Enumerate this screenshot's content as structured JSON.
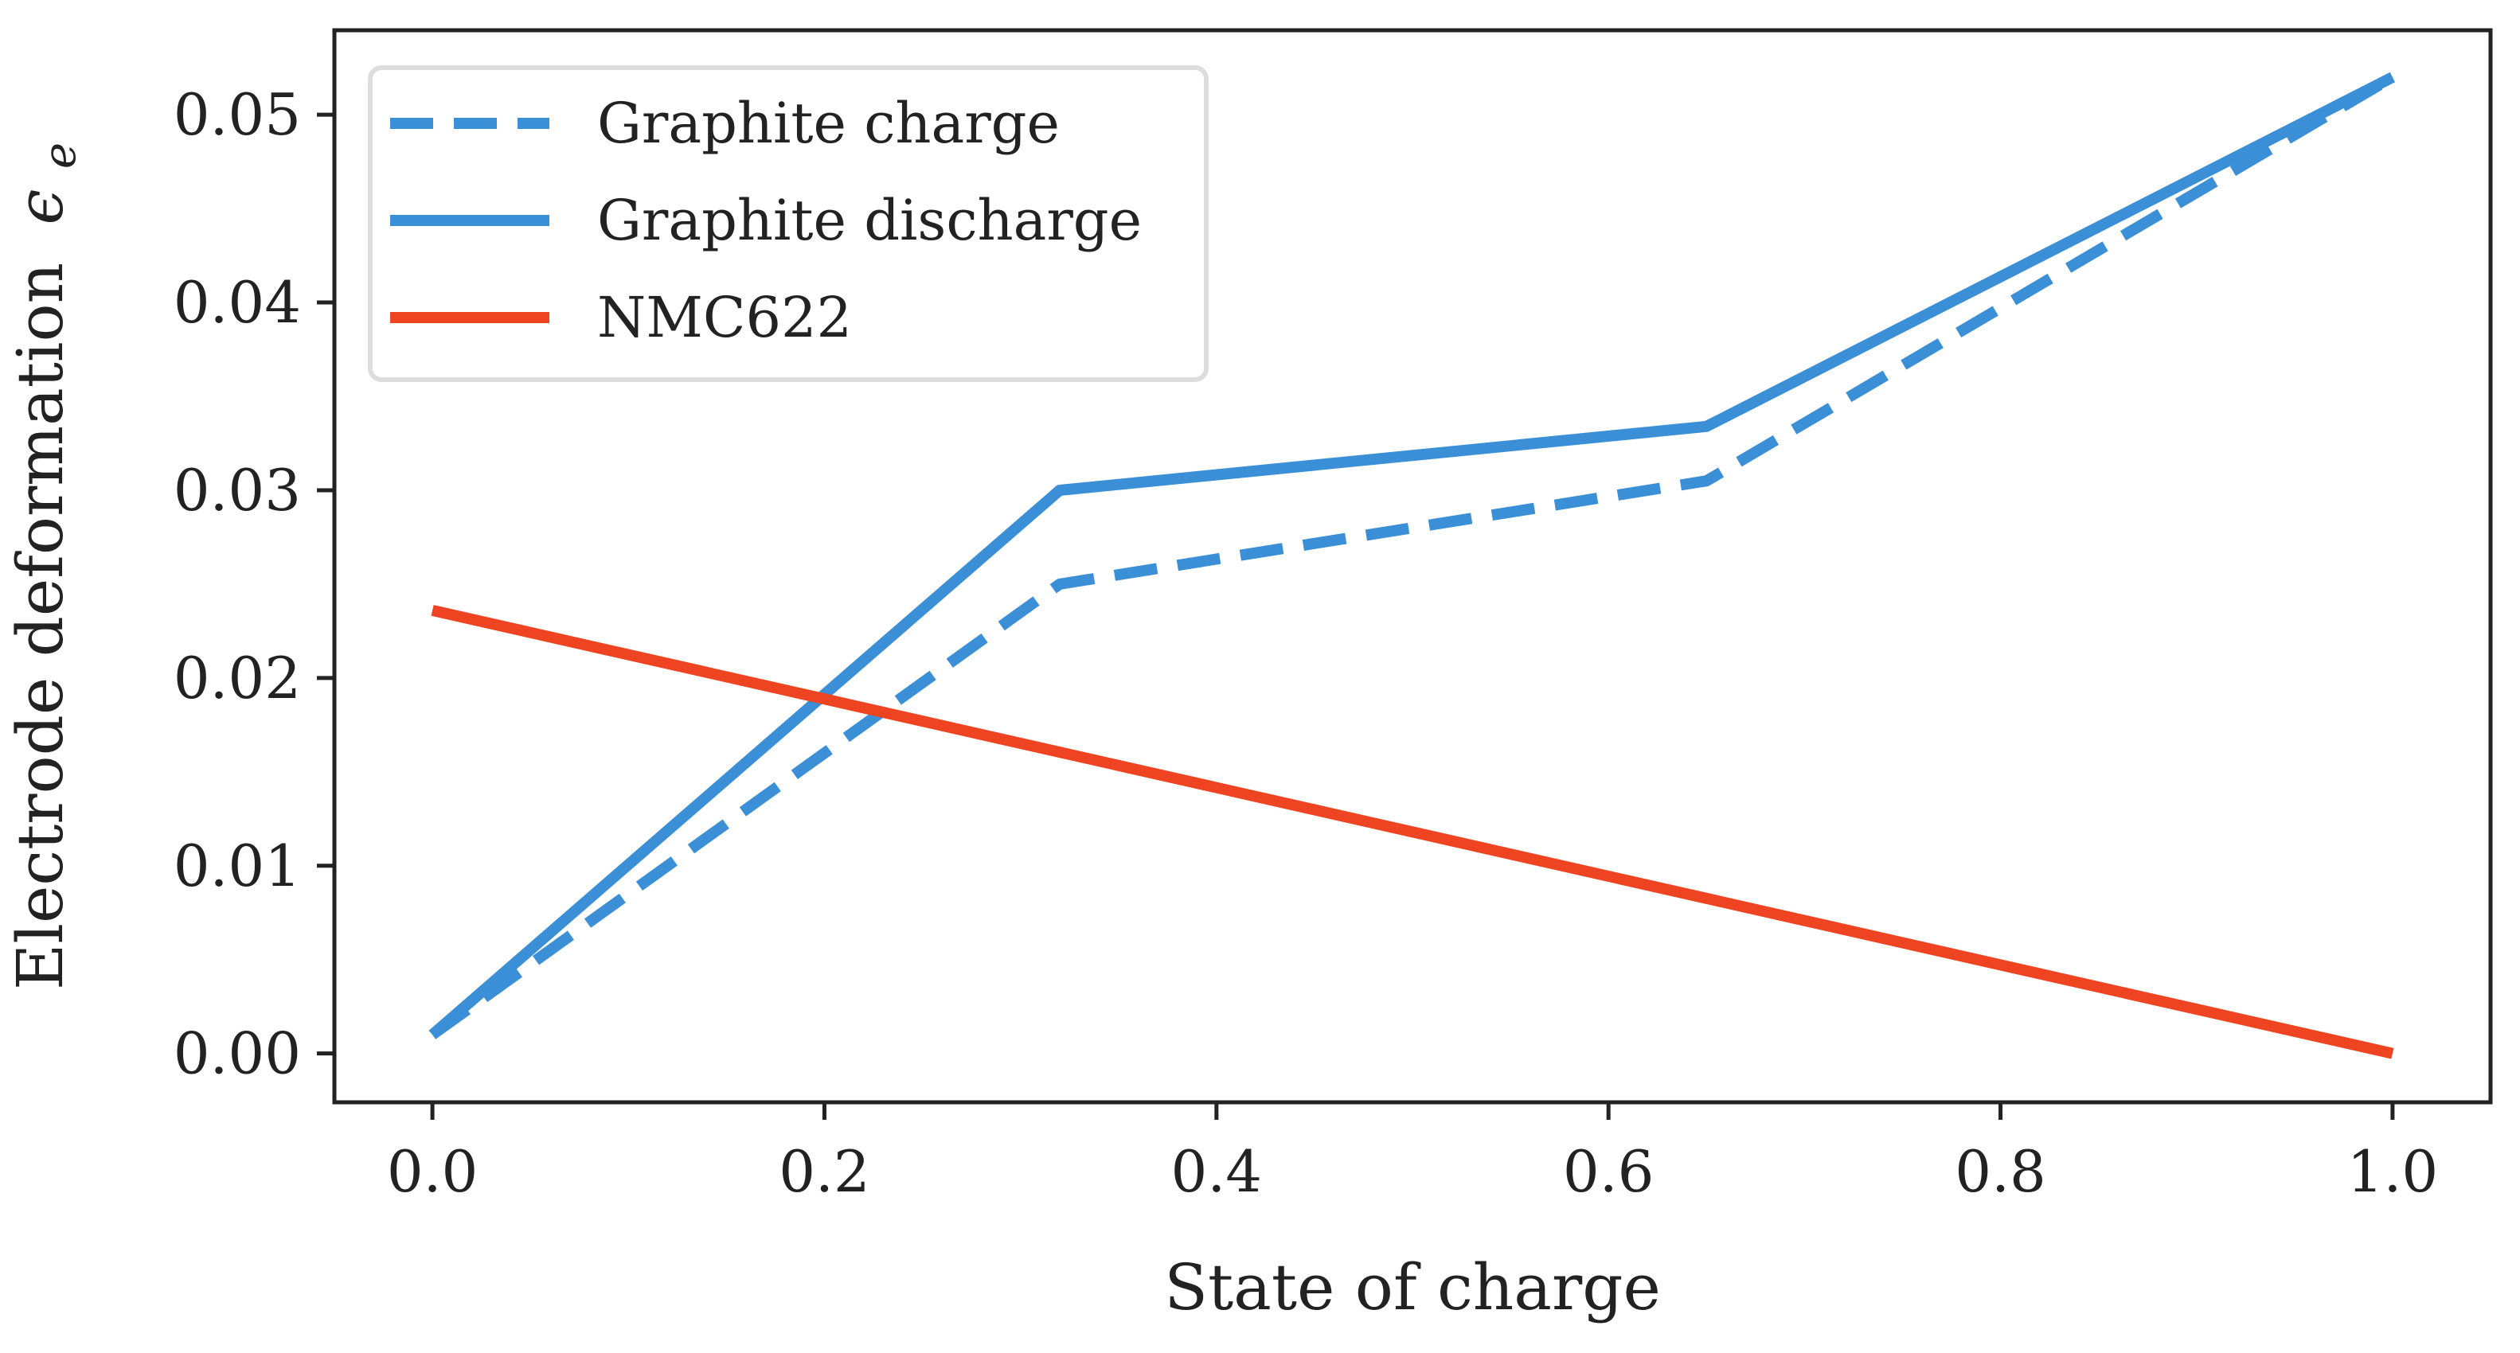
{
  "chart_data": {
    "type": "line",
    "title": "",
    "xlabel": "State of charge",
    "ylabel": "Electrode deformation",
    "ylabel_symbol": "ϵ",
    "ylabel_subscript": "e",
    "xlim": [
      -0.05,
      1.05
    ],
    "ylim": [
      -0.0026,
      0.0545
    ],
    "xticks": [
      0.0,
      0.2,
      0.4,
      0.6,
      0.8,
      1.0
    ],
    "xtick_labels": [
      "0.0",
      "0.2",
      "0.4",
      "0.6",
      "0.8",
      "1.0"
    ],
    "yticks": [
      0.0,
      0.01,
      0.02,
      0.03,
      0.04,
      0.05
    ],
    "ytick_labels": [
      "0.00",
      "0.01",
      "0.02",
      "0.03",
      "0.04",
      "0.05"
    ],
    "grid": false,
    "legend_position": "top-left",
    "series": [
      {
        "name": "Graphite charge",
        "color": "#3a8fd6",
        "style": "dashed",
        "x": [
          0.0,
          0.32,
          0.65,
          1.0
        ],
        "y": [
          0.001,
          0.025,
          0.0305,
          0.052
        ]
      },
      {
        "name": "Graphite discharge",
        "color": "#3a8fd6",
        "style": "solid",
        "x": [
          0.0,
          0.32,
          0.65,
          1.0
        ],
        "y": [
          0.001,
          0.03,
          0.0334,
          0.052
        ]
      },
      {
        "name": "NMC622",
        "color": "#ee4422",
        "style": "solid",
        "x": [
          0.0,
          1.0
        ],
        "y": [
          0.0236,
          0.0
        ]
      }
    ]
  }
}
